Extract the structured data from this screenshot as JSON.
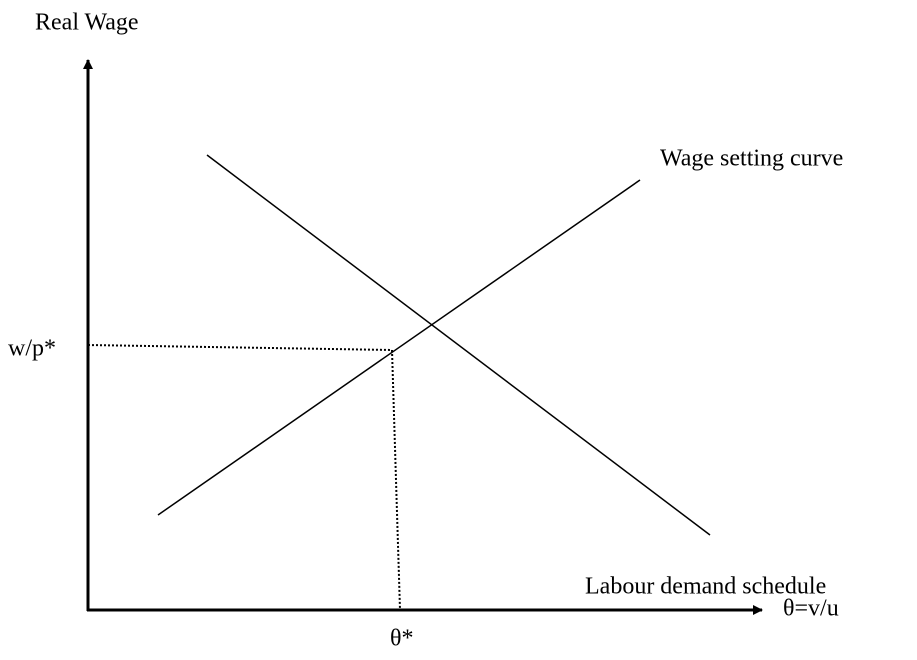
{
  "axes": {
    "y_label": "Real Wage",
    "x_label": "θ=v/u"
  },
  "curves": [
    {
      "label": "Wage setting curve"
    },
    {
      "label": "Labour demand schedule"
    }
  ],
  "equilibrium": {
    "y_label": "w/p*",
    "x_label": "θ*"
  }
}
